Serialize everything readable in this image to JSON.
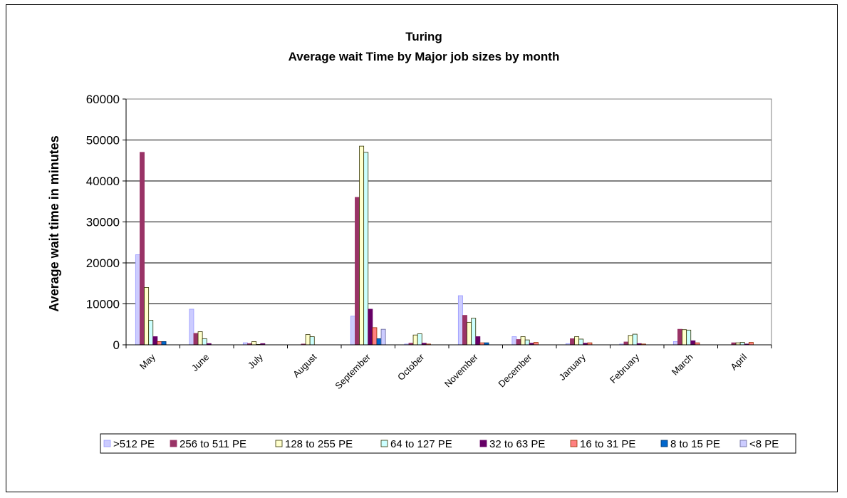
{
  "chart_data": {
    "type": "bar",
    "title": "Turing",
    "subtitle": "Average wait Time by Major job sizes by month",
    "xlabel": "",
    "ylabel": "Average wait time in minutes",
    "ylim": [
      0,
      60000
    ],
    "yticks": [
      "0",
      "10000",
      "20000",
      "30000",
      "40000",
      "50000",
      "60000"
    ],
    "grid": "horizontal",
    "legend_position": "bottom",
    "categories": [
      "May",
      "June",
      "July",
      "August",
      "September",
      "October",
      "November",
      "December",
      "January",
      "February",
      "March",
      "April"
    ],
    "series": [
      {
        "name": ">512 PE",
        "color": "#9999FF",
        "fill": "#CCCCFF",
        "values": [
          22000,
          8700,
          500,
          0,
          7000,
          200,
          12000,
          2000,
          300,
          200,
          800,
          0
        ]
      },
      {
        "name": "256 to 511 PE",
        "color": "#993366",
        "fill": "#993366",
        "values": [
          47000,
          2800,
          300,
          200,
          36000,
          400,
          7200,
          1300,
          1500,
          700,
          3800,
          500
        ]
      },
      {
        "name": "128 to 255 PE",
        "color": "#333300",
        "fill": "#FFFFCC",
        "values": [
          14000,
          3200,
          800,
          2500,
          48500,
          2400,
          5500,
          2000,
          2000,
          2300,
          3700,
          500
        ]
      },
      {
        "name": "64 to 127 PE",
        "color": "#333300",
        "fill": "#CCFFFF",
        "values": [
          6000,
          1500,
          100,
          2000,
          47000,
          2700,
          6500,
          1200,
          1400,
          2600,
          3600,
          600
        ]
      },
      {
        "name": "32 to 63 PE",
        "color": "#660066",
        "fill": "#660066",
        "values": [
          2000,
          300,
          300,
          0,
          8700,
          400,
          2000,
          400,
          400,
          300,
          1000,
          200
        ]
      },
      {
        "name": "16 to 31 PE",
        "color": "#993300",
        "fill": "#FF8080",
        "values": [
          800,
          0,
          0,
          0,
          4200,
          200,
          500,
          600,
          500,
          200,
          500,
          600
        ]
      },
      {
        "name": "8 to 15 PE",
        "color": "#003366",
        "fill": "#0066CC",
        "values": [
          800,
          0,
          0,
          0,
          1500,
          0,
          500,
          0,
          0,
          0,
          0,
          0
        ]
      },
      {
        "name": "<8 PE",
        "color": "#666699",
        "fill": "#CCCCFF",
        "values": [
          0,
          0,
          0,
          0,
          3800,
          0,
          0,
          0,
          0,
          0,
          0,
          0
        ]
      }
    ]
  }
}
